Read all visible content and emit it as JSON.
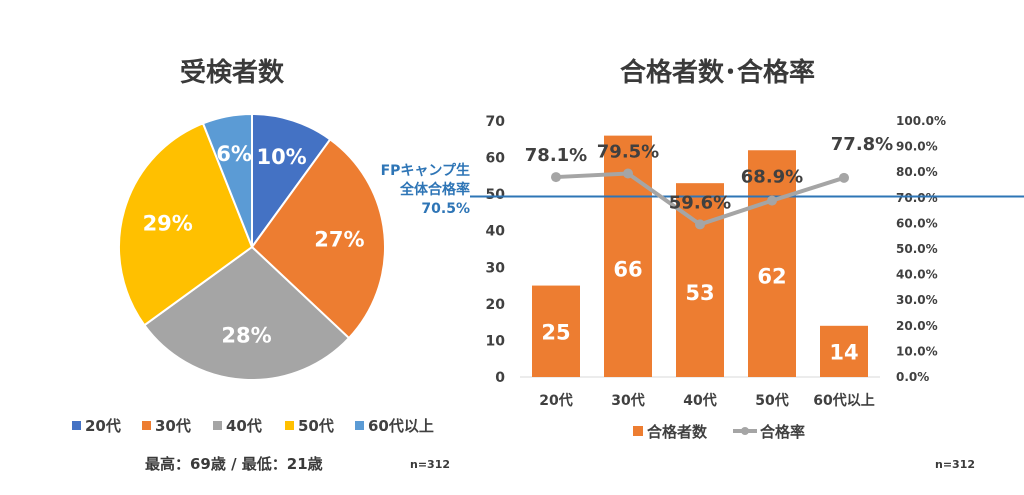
{
  "chart_data": [
    {
      "type": "pie",
      "title": "受検者数",
      "categories": [
        "20代",
        "30代",
        "40代",
        "50代",
        "60代以上"
      ],
      "values": [
        10,
        27,
        28,
        29,
        6
      ],
      "labels": [
        "10%",
        "27%",
        "28%",
        "29%",
        "6%"
      ],
      "colors": [
        "#4472c4",
        "#ed7d31",
        "#a5a5a5",
        "#ffc000",
        "#5b9bd5"
      ],
      "legend": "bottom",
      "footnote": "最高：69歳 / 最低：21歳",
      "n_label": "n=312"
    },
    {
      "type": "bar",
      "title": "合格者数･合格率",
      "categories": [
        "20代",
        "30代",
        "40代",
        "50代",
        "60代以上"
      ],
      "series": [
        {
          "name": "合格者数",
          "kind": "bar",
          "values": [
            25,
            66,
            53,
            62,
            14
          ],
          "color": "#ed7d31"
        },
        {
          "name": "合格率",
          "kind": "line",
          "axis": "right",
          "values": [
            78.1,
            79.5,
            59.6,
            68.9,
            77.8
          ],
          "labels": [
            "78.1%",
            "79.5%",
            "59.6%",
            "68.9%",
            "77.8%"
          ],
          "color": "#a5a5a5"
        }
      ],
      "ylim": [
        0,
        70
      ],
      "y_ticks": [
        "0",
        "10",
        "20",
        "30",
        "40",
        "50",
        "60",
        "70"
      ],
      "y2lim": [
        0,
        100
      ],
      "y2_ticks": [
        "0.0%",
        "10.0%",
        "20.0%",
        "30.0%",
        "40.0%",
        "50.0%",
        "60.0%",
        "70.0%",
        "80.0%",
        "90.0%",
        "100.0%"
      ],
      "reference_line": {
        "value": 70.5,
        "axis": "right",
        "color": "#2e75b6",
        "label_lines": [
          "FPキャンプ生",
          "全体合格率",
          "70.5%"
        ]
      },
      "legend": "bottom",
      "n_label": "n=312"
    }
  ]
}
